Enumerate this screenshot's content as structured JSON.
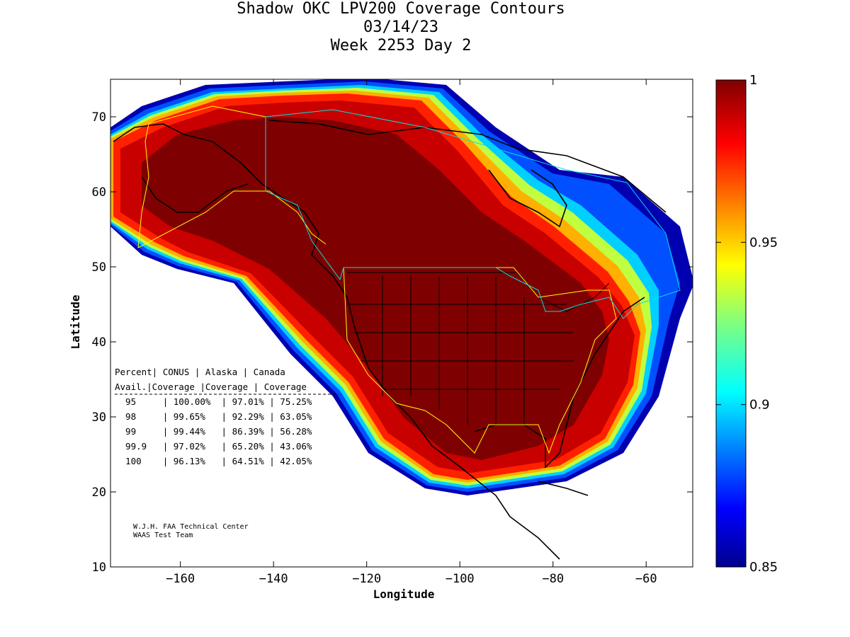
{
  "title": {
    "line1": "Shadow OKC LPV200 Coverage Contours",
    "line2": "03/14/23",
    "line3": "Week 2253 Day 2"
  },
  "axes": {
    "xlabel": "Longitude",
    "ylabel": "Latitude",
    "xlim": [
      -175,
      -50
    ],
    "ylim": [
      10,
      75
    ],
    "xticks": [
      -160,
      -140,
      -120,
      -100,
      -80,
      -60
    ],
    "yticks": [
      10,
      20,
      30,
      40,
      50,
      60,
      70
    ]
  },
  "colorbar": {
    "range": [
      0.85,
      1
    ],
    "ticks": [
      "1",
      "0.95",
      "0.9",
      "0.85"
    ],
    "colormap": "jet"
  },
  "table": {
    "header1": [
      "Percent",
      "CONUS",
      "Alaska",
      "Canada"
    ],
    "header2": [
      "Avail.",
      "Coverage",
      "Coverage",
      "Coverage"
    ],
    "rows": [
      [
        "95",
        "100.00%",
        "97.01%",
        "75.25%"
      ],
      [
        "98",
        "99.65%",
        "92.29%",
        "63.05%"
      ],
      [
        "99",
        "99.44%",
        "86.39%",
        "56.28%"
      ],
      [
        "99.9",
        "97.02%",
        "65.20%",
        "43.06%"
      ],
      [
        "100",
        "96.13%",
        "64.51%",
        "42.05%"
      ]
    ]
  },
  "credit": {
    "line1": "W.J.H. FAA Technical Center",
    "line2": "WAAS Test Team"
  },
  "colors": {
    "max": "#7f0000",
    "red": "#ff1a00",
    "orange": "#ff8000",
    "yellow": "#ffff00",
    "cyan": "#00ffff",
    "blue": "#0040ff",
    "navy": "#00008f"
  }
}
